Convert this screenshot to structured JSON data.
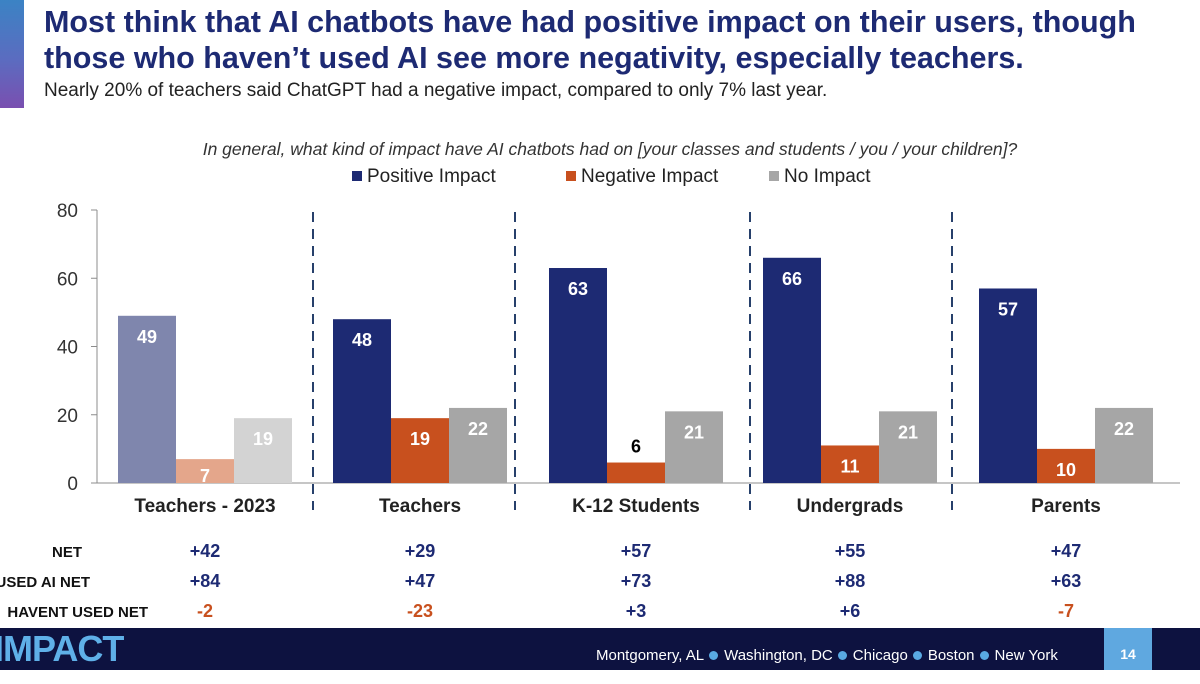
{
  "header": {
    "title_line1": "Most think that AI chatbots have had positive impact on their users, though",
    "title_line2": "those who haven’t used AI see more negativity, especially teachers.",
    "subtitle": "Nearly 20% of teachers said ChatGPT had a negative impact, compared to only 7% last year."
  },
  "chart_data": {
    "type": "bar",
    "title": "In general, what kind of impact have AI chatbots had on [your classes and students / you / your children]?",
    "xlabel": "",
    "ylabel": "",
    "ylim": [
      0,
      80
    ],
    "yticks": [
      "0",
      "20",
      "40",
      "60",
      "80"
    ],
    "grid": false,
    "legend_position": "top-center",
    "categories": [
      "Teachers - 2023",
      "Teachers",
      "K-12 Students",
      "Undergrads",
      "Parents"
    ],
    "series": [
      {
        "name": "Positive Impact",
        "color": "#1d2a73",
        "faded_color": "#7f86ad",
        "values": [
          49,
          48,
          63,
          66,
          57
        ],
        "labels": [
          "49",
          "48",
          "63",
          "66",
          "57"
        ]
      },
      {
        "name": "Negative Impact",
        "color": "#c8501e",
        "faded_color": "#e4a68b",
        "values": [
          7,
          19,
          6,
          11,
          10
        ],
        "labels": [
          "7",
          "19",
          "6",
          "11",
          "10"
        ]
      },
      {
        "name": "No Impact",
        "color": "#a6a6a6",
        "faded_color": "#d3d3d3",
        "values": [
          19,
          22,
          21,
          21,
          22
        ],
        "labels": [
          "19",
          "22",
          "21",
          "21",
          "22"
        ]
      }
    ],
    "faded_categories": [
      0
    ],
    "net_rows": [
      {
        "label": "NET",
        "values": [
          "+42",
          "+29",
          "+57",
          "+55",
          "+47"
        ]
      },
      {
        "label": "USED AI NET",
        "values": [
          "+84",
          "+47",
          "+73",
          "+88",
          "+63"
        ]
      },
      {
        "label": "HAVENT USED NET",
        "values": [
          "-2",
          "-23",
          "+3",
          "+6",
          "-7"
        ]
      }
    ],
    "positive_color": "#1d2a73",
    "negative_color": "#c8501e"
  },
  "footer": {
    "logo_text": "IMPACT",
    "locations": [
      "Montgomery, AL",
      "Washington, DC",
      "Chicago",
      "Boston",
      "New York"
    ],
    "page_number": "14"
  }
}
